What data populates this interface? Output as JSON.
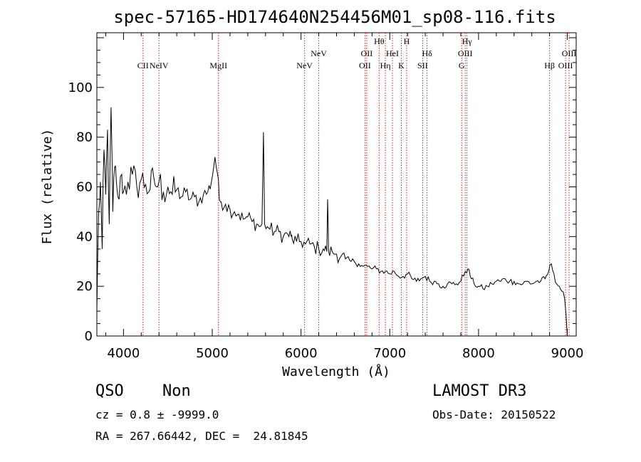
{
  "chart_data": {
    "type": "line",
    "title": "spec-57165-HD174640N254456M01_sp08-116.fits",
    "xlabel": "Wavelength (Å)",
    "ylabel": "Flux (relative)",
    "xlim": [
      3700,
      9100
    ],
    "ylim": [
      0,
      122
    ],
    "xticks": [
      4000,
      5000,
      6000,
      7000,
      8000,
      9000
    ],
    "yticks": [
      0,
      20,
      40,
      60,
      80,
      100
    ],
    "grid": false,
    "series": [
      {
        "x": [
          3700,
          3720,
          3740,
          3760,
          3780,
          3800,
          3820,
          3840,
          3860,
          3880,
          3900,
          3920,
          3950,
          3980,
          4000,
          4050,
          4100,
          4150,
          4200,
          4250,
          4300,
          4340,
          4370,
          4400,
          4450,
          4500,
          4550,
          4600,
          4650,
          4700,
          4750,
          4800,
          4850,
          4900,
          4950,
          4990,
          5030,
          5060,
          5080,
          5100,
          5150,
          5200,
          5250,
          5300,
          5350,
          5400,
          5450,
          5500,
          5530,
          5560,
          5577,
          5590,
          5620,
          5650,
          5700,
          5750,
          5800,
          5850,
          5890,
          5900,
          5950,
          6000,
          6050,
          6100,
          6150,
          6200,
          6250,
          6290,
          6300,
          6310,
          6350,
          6400,
          6450,
          6500,
          6563,
          6600,
          6650,
          6700,
          6750,
          6800,
          6850,
          6900,
          6950,
          7000,
          7050,
          7100,
          7150,
          7200,
          7250,
          7300,
          7350,
          7400,
          7450,
          7500,
          7550,
          7600,
          7650,
          7700,
          7750,
          7800,
          7850,
          7880,
          7920,
          7950,
          8000,
          8050,
          8100,
          8150,
          8200,
          8250,
          8300,
          8350,
          8400,
          8450,
          8500,
          8550,
          8600,
          8650,
          8700,
          8750,
          8790,
          8820,
          8850,
          8880,
          8910,
          8940,
          8970,
          9000
        ],
        "y": [
          10,
          50,
          62,
          35,
          75,
          57,
          83,
          45,
          92,
          50,
          68,
          62,
          55,
          65,
          58,
          62,
          65,
          60,
          63,
          61,
          59,
          64,
          60,
          62,
          58,
          60,
          57,
          59,
          56,
          58,
          55,
          56,
          54,
          57,
          58,
          62,
          72,
          65,
          55,
          54,
          53,
          51,
          50,
          49,
          47,
          48,
          46,
          45,
          44,
          45,
          82,
          45,
          44,
          43,
          42,
          42,
          40,
          41,
          40,
          39,
          38,
          38,
          37,
          37,
          36,
          35,
          35,
          34,
          55,
          34,
          34,
          33,
          32,
          31,
          30,
          30,
          29,
          28,
          28,
          27,
          27,
          26,
          26,
          25,
          26,
          24,
          24,
          25,
          23,
          22,
          23,
          24,
          22,
          22,
          21,
          20,
          21,
          21,
          21,
          22,
          26,
          27,
          23,
          21,
          20,
          19,
          20,
          21,
          22,
          22,
          23,
          22,
          22,
          21,
          21,
          22,
          21,
          22,
          22,
          23,
          26,
          29,
          25,
          21,
          20,
          18,
          15,
          0
        ]
      }
    ],
    "annotations": [
      {
        "text": "CII",
        "wavelength": 4220
      },
      {
        "text": "NeIV",
        "wavelength": 4400
      },
      {
        "text": "MgII",
        "wavelength": 5070
      },
      {
        "text": "NeV",
        "wavelength": 6040
      },
      {
        "text": "NeV",
        "wavelength": 6200
      },
      {
        "text": "OII",
        "wavelength": 6720
      },
      {
        "text": "OII",
        "wavelength": 6740
      },
      {
        "text": "Hθ",
        "wavelength": 6880
      },
      {
        "text": "Hη",
        "wavelength": 6950
      },
      {
        "text": "HeI",
        "wavelength": 7030
      },
      {
        "text": "K",
        "wavelength": 7130
      },
      {
        "text": "H",
        "wavelength": 7190
      },
      {
        "text": "SII",
        "wavelength": 7370
      },
      {
        "text": "Hδ",
        "wavelength": 7420
      },
      {
        "text": "G",
        "wavelength": 7810
      },
      {
        "text": "OIII",
        "wavelength": 7850
      },
      {
        "text": "Hγ",
        "wavelength": 7870
      },
      {
        "text": "Hβ",
        "wavelength": 8800
      },
      {
        "text": "OIII",
        "wavelength": 8980
      },
      {
        "text": "OIII",
        "wavelength": 9020
      }
    ]
  },
  "info": {
    "class": "QSO",
    "subclass": "Non",
    "redshift_line": "cz = 0.8 ± -9999.0",
    "coords_line": "RA = 267.66442, DEC =  24.81845",
    "survey": "LAMOST DR3",
    "obs_date_line": "Obs-Date: 20150522"
  }
}
